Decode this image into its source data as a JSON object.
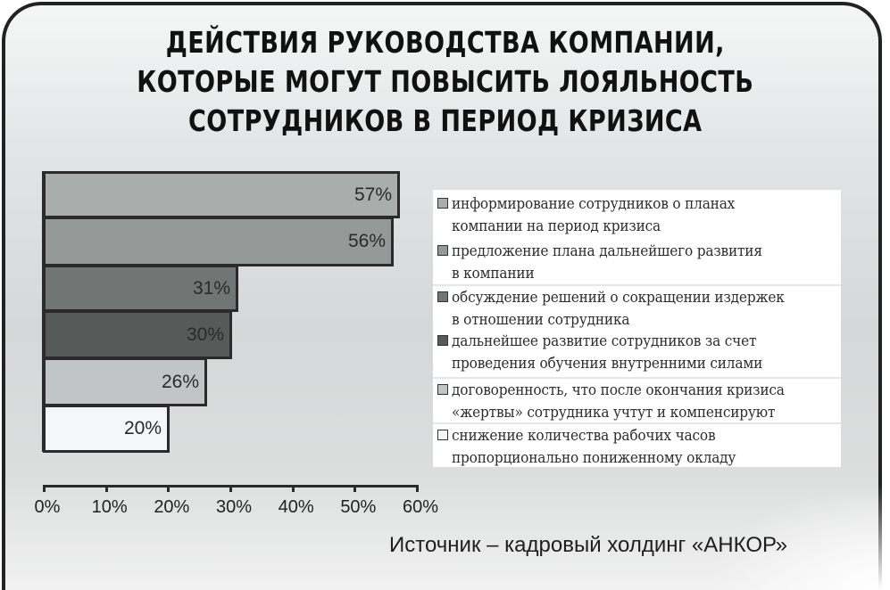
{
  "title": {
    "lines": [
      "ДЕЙСТВИЯ РУКОВОДСТВА КОМПАНИИ,",
      "КОТОРЫЕ МОГУТ ПОВЫСИТЬ ЛОЯЛЬНОСТЬ",
      "СОТРУДНИКОВ В ПЕРИОД КРИЗИСА"
    ]
  },
  "source": "Источник – кадровый холдинг «АНКОР»",
  "colors": {
    "frame_border": "#222222",
    "axis": "#2a2a2a",
    "bar_border": "#2a2a2a"
  },
  "chart_data": {
    "type": "bar",
    "orientation": "horizontal",
    "title": "ДЕЙСТВИЯ РУКОВОДСТВА КОМПАНИИ, КОТОРЫЕ МОГУТ ПОВЫСИТЬ ЛОЯЛЬНОСТЬ СОТРУДНИКОВ В ПЕРИОД КРИЗИСА",
    "xlabel": "",
    "ylabel": "",
    "xlim": [
      0,
      60
    ],
    "x_ticks": [
      "0%",
      "10%",
      "20%",
      "30%",
      "40%",
      "50%",
      "60%"
    ],
    "grid": false,
    "legend_position": "right",
    "categories": [
      "информирование сотрудников о планах компании на период кризиса",
      "предложение плана дальнейшего развития в компании",
      "обсуждение решений о сокращении издержек в отношении сотрудника",
      "дальнейшее развитие сотрудников за счет проведения обучения внутренними силами",
      "договоренность, что после окончания кризиса «жертвы» сотрудника учтут и компенсируют",
      "снижение количества рабочих часов пропорционально пониженному окладу"
    ],
    "values": [
      57,
      56,
      31,
      30,
      26,
      20
    ],
    "value_labels": [
      "57%",
      "56%",
      "31%",
      "30%",
      "26%",
      "20%"
    ],
    "bar_colors": [
      "#a9adac",
      "#959a99",
      "#717674",
      "#565a59",
      "#c2c5c5",
      "#f5f6f7"
    ],
    "source": "Источник – кадровый холдинг «АНКОР»"
  },
  "legend": {
    "items": [
      {
        "line1": "информирование сотрудников о планах",
        "line2": "компании на период кризиса",
        "color": "#a9adac"
      },
      {
        "line1": "предложение плана дальнейшего развития",
        "line2": "в компании",
        "color": "#959a99"
      },
      {
        "line1": "обсуждение решений о сокращении издержек",
        "line2": "в отношении сотрудника",
        "color": "#717674"
      },
      {
        "line1": "дальнейшее развитие сотрудников за счет",
        "line2": "проведения обучения внутренними силами",
        "color": "#565a59"
      },
      {
        "line1": "договоренность, что после окончания кризиса",
        "line2": "«жертвы» сотрудника учтут и компенсируют",
        "color": "#c2c5c5"
      },
      {
        "line1": "снижение количества рабочих часов",
        "line2": "пропорционально пониженному окладу",
        "color": "#f5f6f7"
      }
    ]
  }
}
